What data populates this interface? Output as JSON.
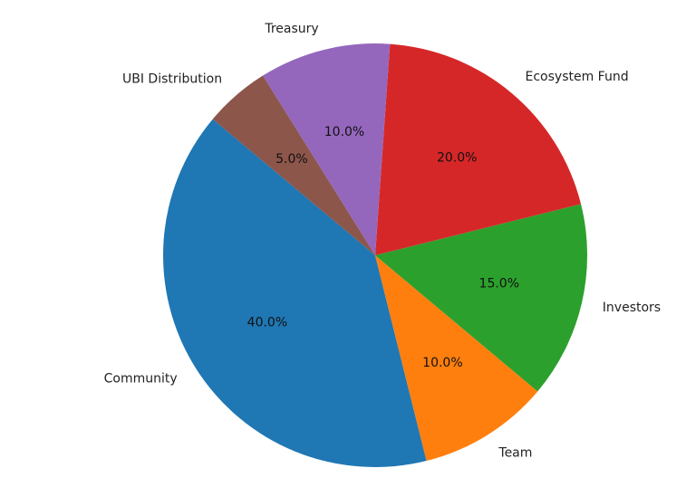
{
  "chart_data": {
    "type": "pie",
    "title": "",
    "start_angle_deg": 140,
    "direction": "counterclockwise",
    "categories": [
      "Community",
      "Team",
      "Investors",
      "Ecosystem Fund",
      "Treasury",
      "UBI Distribution"
    ],
    "values": [
      40.0,
      10.0,
      15.0,
      20.0,
      10.0,
      5.0
    ],
    "percent_labels": [
      "40.0%",
      "10.0%",
      "15.0%",
      "20.0%",
      "10.0%",
      "5.0%"
    ],
    "colors": [
      "#1f77b4",
      "#ff7f0e",
      "#2ca02c",
      "#d62728",
      "#9467bd",
      "#8c564b"
    ],
    "legend": "none"
  }
}
